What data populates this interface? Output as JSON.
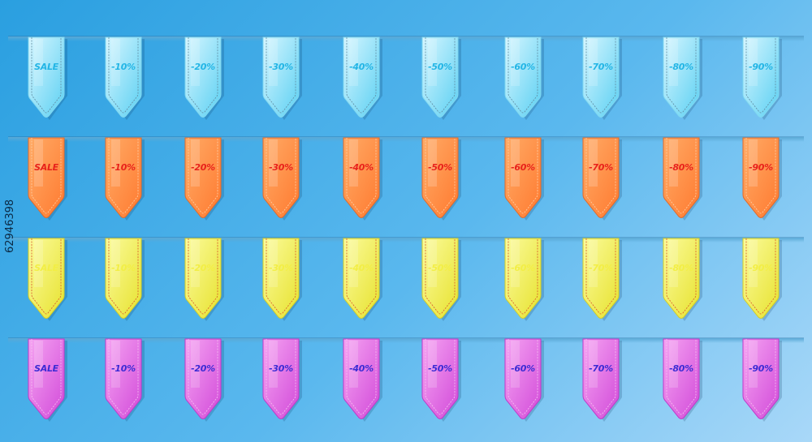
{
  "rows": [
    {
      "color": "cyan",
      "fill_top": "#d6f6ff",
      "fill_bottom": "#5cd0f2",
      "stroke": "#7fd7f0",
      "stitch": "#5f8aa0",
      "text_color": "#23b5e5",
      "labels": [
        "SALE",
        "-10%",
        "-20%",
        "-30%",
        "-40%",
        "-50%",
        "-60%",
        "-70%",
        "-80%",
        "-90%"
      ]
    },
    {
      "color": "orange",
      "fill_top": "#ffab66",
      "fill_bottom": "#ff7a30",
      "stroke": "#e0692a",
      "stitch": "#ffd1a8",
      "text_color": "#e8221b",
      "labels": [
        "SALE",
        "-10%",
        "-20%",
        "-30%",
        "-40%",
        "-50%",
        "-60%",
        "-70%",
        "-80%",
        "-90%"
      ]
    },
    {
      "color": "yellow",
      "fill_top": "#fbfb9c",
      "fill_bottom": "#e7e22f",
      "stroke": "#d2cd26",
      "stitch": "#d8552a",
      "text_color": "#f2ee45",
      "labels": [
        "SALE",
        "-10%",
        "-20%",
        "-30%",
        "-40%",
        "-50%",
        "-60%",
        "-70%",
        "-80%",
        "-90%"
      ]
    },
    {
      "color": "magenta",
      "fill_top": "#f5a4f2",
      "fill_bottom": "#d24ad9",
      "stroke": "#c038c8",
      "stitch": "#f7c3f2",
      "text_color": "#3c2bd4",
      "labels": [
        "SALE",
        "-10%",
        "-20%",
        "-30%",
        "-40%",
        "-50%",
        "-60%",
        "-70%",
        "-80%",
        "-90%"
      ]
    }
  ],
  "stock_id": "62946398"
}
